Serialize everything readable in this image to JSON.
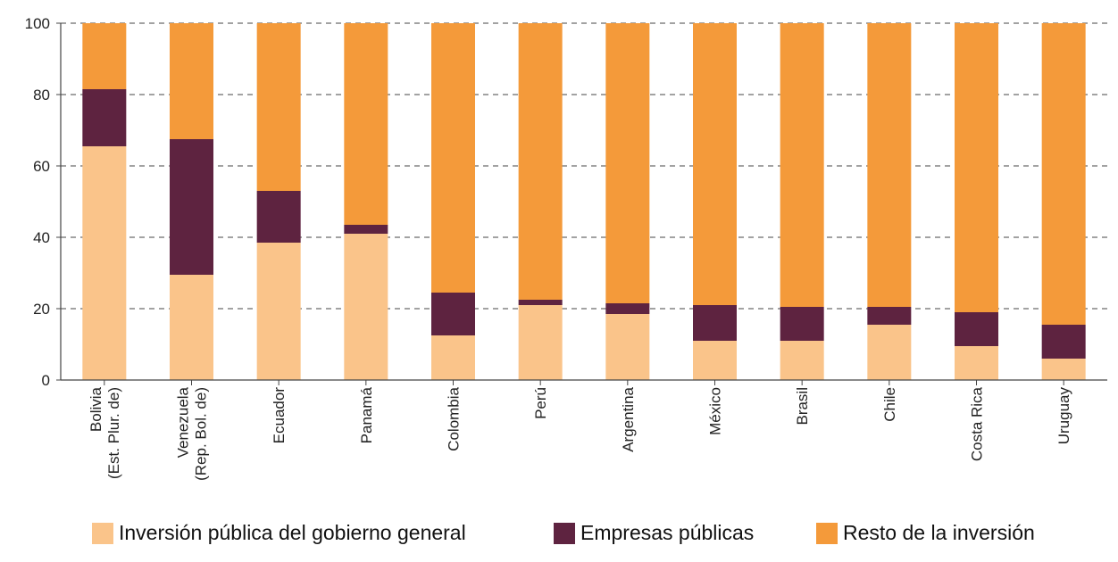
{
  "chart_data": {
    "type": "bar",
    "stacked": true,
    "categories": [
      [
        "Bolivia",
        "(Est. Plur. de)"
      ],
      [
        "Venezuela",
        "(Rep. Bol. de)"
      ],
      [
        "Ecuador"
      ],
      [
        "Panamá"
      ],
      [
        "Colombia"
      ],
      [
        "Perú"
      ],
      [
        "Argentina"
      ],
      [
        "México"
      ],
      [
        "Brasil"
      ],
      [
        "Chile"
      ],
      [
        "Costa Rica"
      ],
      [
        "Uruguay"
      ]
    ],
    "series": [
      {
        "name": "Inversión pública del gobierno general",
        "color": "#fac48a",
        "values": [
          65.5,
          29.5,
          38.5,
          41,
          12.5,
          21,
          18.5,
          11,
          11,
          15.5,
          9.5,
          6
        ]
      },
      {
        "name": "Empresas públicas",
        "color": "#5e2340",
        "values": [
          16,
          38,
          14.5,
          2.5,
          12,
          1.5,
          3,
          10,
          9.5,
          5,
          9.5,
          9.5
        ]
      },
      {
        "name": "Resto de la inversión",
        "color": "#f49a3a",
        "values": [
          18.5,
          32.5,
          47,
          56.5,
          75.5,
          77.5,
          78.5,
          79,
          79.5,
          79.5,
          81,
          84.5
        ]
      }
    ],
    "ylim": [
      0,
      100
    ],
    "yticks": [
      0,
      20,
      40,
      60,
      80,
      100
    ],
    "grid": true,
    "legend_position": "bottom"
  }
}
